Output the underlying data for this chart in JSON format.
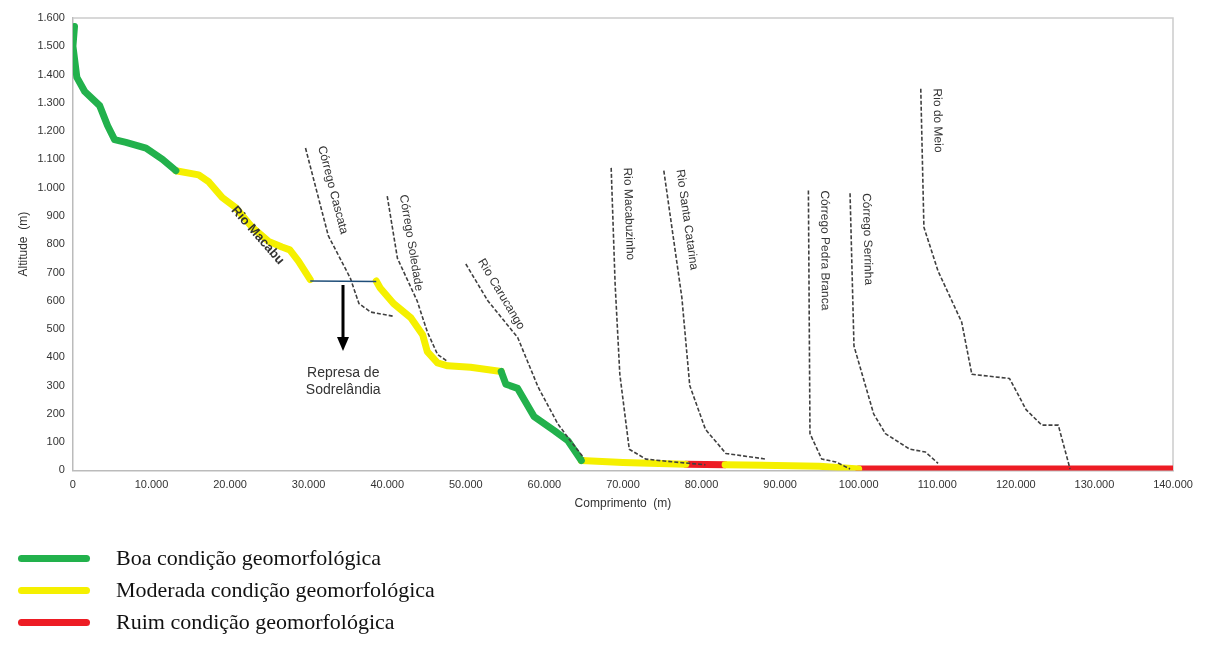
{
  "chart_data": {
    "type": "line",
    "xlabel": "Comprimento  (m)",
    "ylabel": "Altitude  (m)",
    "legend": "bottom left",
    "marker": "none",
    "xlim": [
      0,
      140000
    ],
    "ylim": [
      0,
      1600
    ],
    "xticks": [
      0,
      {
        "value": 10000,
        "label": "10.000"
      },
      {
        "value": 20000,
        "label": "20.000"
      },
      {
        "value": 30000,
        "label": "30.000"
      },
      {
        "value": 40000,
        "label": "40.000"
      },
      {
        "value": 50000,
        "label": "50.000"
      },
      {
        "value": 60000,
        "label": "60.000"
      },
      {
        "value": 70000,
        "label": "70.000"
      },
      {
        "value": 80000,
        "label": "80.000"
      },
      {
        "value": 90000,
        "label": "90.000"
      },
      {
        "value": 100000,
        "label": "100.000"
      },
      {
        "value": 110000,
        "label": "110.000"
      },
      {
        "value": 120000,
        "label": "120.000"
      },
      {
        "value": 130000,
        "label": "130.000"
      },
      {
        "value": 140000,
        "label": "140.000"
      }
    ],
    "yticks": [
      0,
      100,
      200,
      300,
      400,
      500,
      600,
      700,
      800,
      900,
      {
        "value": 1000,
        "label": "1.000"
      },
      {
        "value": 1100,
        "label": "1.100"
      },
      {
        "value": 1200,
        "label": "1.200"
      },
      {
        "value": 1300,
        "label": "1.300"
      },
      {
        "value": 1400,
        "label": "1.400"
      },
      {
        "value": 1500,
        "label": "1.500"
      },
      {
        "value": 1600,
        "label": "1.600"
      }
    ],
    "annotations": [
      {
        "text": "Rio Macabu",
        "x": 20700,
        "y": 930
      },
      "Represa de Sodrelândia"
    ],
    "series": [
      {
        "name": "Boa condição geomorfológica",
        "color": "#22b14c",
        "line_style": "solid",
        "x": [
          200,
          0,
          500,
          1500,
          3400,
          4400,
          5300,
          6750,
          9300,
          11400,
          13100,
          30000,
          54500,
          55100,
          56600,
          58700,
          61300,
          63000,
          64700
        ],
        "values": [
          1570,
          1500,
          1390,
          1340,
          1290,
          1220,
          1170,
          1160,
          1140,
          1100,
          1060,
          null,
          350,
          305,
          290,
          190,
          140,
          105,
          35
        ]
      },
      {
        "name": "Moderada condição geomorfológica",
        "color": "#f5f000",
        "line_style": "solid",
        "x": [
          13100,
          16000,
          17300,
          19000,
          20700,
          22800,
          24900,
          26600,
          27600,
          28700,
          30200,
          34000,
          38600,
          39100,
          40800,
          43000,
          44500,
          45100,
          46400,
          47700,
          50600,
          54500,
          60000,
          64700,
          70000,
          78000,
          80000,
          83000,
          95000,
          100000
        ],
        "values": [
          1060,
          1045,
          1020,
          965,
          930,
          860,
          810,
          790,
          780,
          740,
          675,
          null,
          670,
          645,
          590,
          540,
          480,
          420,
          380,
          370,
          365,
          350,
          null,
          35,
          28,
          22,
          null,
          20,
          15,
          5
        ]
      },
      {
        "name": "Ruim condição geomorfológica",
        "color": "#ed1c24",
        "line_style": "solid",
        "x": [
          78000,
          83000,
          90000,
          100000,
          140000
        ],
        "values": [
          22,
          20,
          null,
          5,
          5
        ]
      },
      {
        "color": "#1f4e79",
        "line_style": "solid",
        "x": [
          30200,
          38600
        ],
        "values": [
          670,
          668
        ]
      },
      {
        "name": "Córrego Cascata",
        "color": "#404040",
        "line_style": "dashed",
        "x": [
          29600,
          32500,
          35300,
          36400,
          37900,
          40800
        ],
        "values": [
          1140,
          830,
          680,
          590,
          560,
          545
        ]
      },
      {
        "name": "Córrego Soledade",
        "color": "#404040",
        "line_style": "dashed",
        "x": [
          40000,
          41300,
          43800,
          45100,
          46400,
          47700
        ],
        "values": [
          970,
          750,
          600,
          490,
          410,
          385
        ]
      },
      {
        "name": "Rio Carucango",
        "color": "#404040",
        "line_style": "dashed",
        "x": [
          50000,
          52800,
          56600,
          59200,
          61700,
          63300,
          65000
        ],
        "values": [
          730,
          600,
          470,
          295,
          165,
          105,
          45
        ]
      },
      {
        "name": "Rio Macabuzinho",
        "color": "#404040",
        "line_style": "dashed",
        "x": [
          68500,
          69000,
          69600,
          70800,
          72900,
          76400,
          80500
        ],
        "values": [
          1070,
          660,
          340,
          75,
          40,
          30,
          20
        ]
      },
      {
        "name": "Rio Santa Catarina",
        "color": "#404040",
        "line_style": "dashed",
        "x": [
          75200,
          77500,
          78500,
          80500,
          83100,
          88200
        ],
        "values": [
          1060,
          610,
          300,
          145,
          60,
          40
        ]
      },
      {
        "name": "Córrego Pedra Branca",
        "color": "#404040",
        "line_style": "dashed",
        "x": [
          93600,
          93800,
          95300,
          97100,
          98900
        ],
        "values": [
          990,
          130,
          40,
          30,
          5
        ]
      },
      {
        "name": "Córrego Serrinha",
        "color": "#404040",
        "line_style": "dashed",
        "x": [
          98900,
          99400,
          101900,
          103400,
          106500,
          108500,
          110100
        ],
        "values": [
          980,
          440,
          200,
          130,
          75,
          65,
          25
        ]
      },
      {
        "name": "Rio do Meio",
        "color": "#404040",
        "line_style": "dashed",
        "x": [
          107900,
          108300,
          110100,
          113100,
          114400,
          119200,
          121300,
          123300,
          125400,
          126900
        ],
        "values": [
          1350,
          860,
          705,
          525,
          340,
          325,
          215,
          160,
          160,
          5
        ]
      }
    ]
  }
}
